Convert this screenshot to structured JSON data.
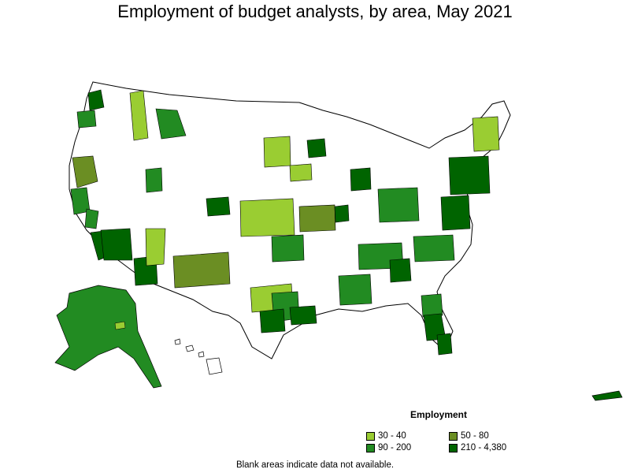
{
  "title": "Employment of budget analysts, by area, May 2021",
  "legend": {
    "title": "Employment",
    "items": [
      {
        "label": "30 - 40",
        "color": "#9acd32"
      },
      {
        "label": "50 - 80",
        "color": "#6b8e23"
      },
      {
        "label": "90 - 200",
        "color": "#228b22"
      },
      {
        "label": "210 - 4,380",
        "color": "#006400"
      }
    ]
  },
  "note": "Blank areas indicate data not available."
}
